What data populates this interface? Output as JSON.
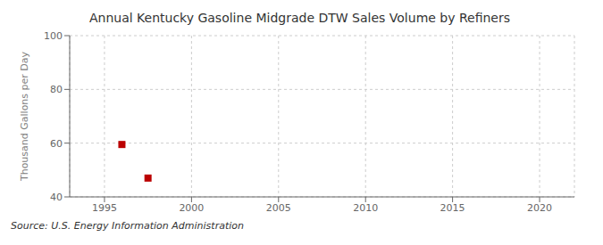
{
  "chart_data": {
    "type": "scatter",
    "title": "Annual Kentucky Gasoline Midgrade DTW Sales Volume by Refiners",
    "ylabel": "Thousand Gallons per Day",
    "source": "Source: U.S. Energy Information Administration",
    "x": [
      1996,
      1997.5
    ],
    "values": [
      59.5,
      47
    ],
    "color": "#bb0000",
    "marker": "square",
    "xlim": [
      1993,
      2022
    ],
    "xticks": [
      1995,
      2000,
      2005,
      2010,
      2015,
      2020
    ],
    "ylim": [
      40,
      100
    ],
    "yticks": [
      40,
      60,
      80,
      100
    ],
    "grid": true
  }
}
